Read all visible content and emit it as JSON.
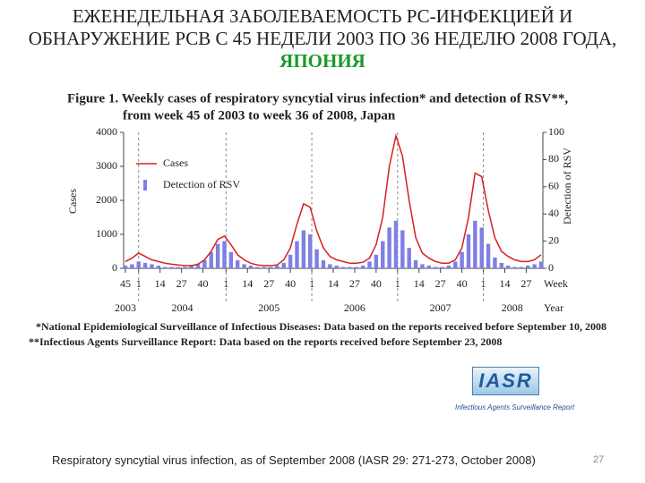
{
  "slide_title": "ЕЖЕНЕДЕЛЬНАЯ ЗАБОЛЕВАЕМОСТЬ РС-ИНФЕКЦИЕЙ И ОБНАРУЖЕНИЕ РСВ С 45 НЕДЕЛИ 2003 ПО 36 НЕДЕЛЮ 2008 ГОДА,",
  "slide_title_highlight": "ЯПОНИЯ",
  "chart_data": {
    "type": "combo",
    "title": [
      "Figure 1. Weekly cases of respiratory syncytial virus infection* and detection of RSV**,",
      "from week 45 of 2003 to week 36 of 2008, Japan"
    ],
    "ylabel": "Cases",
    "y2label": "Detection of RSV",
    "xlabel": "Week",
    "year_label": "Year",
    "years": [
      "2003",
      "2004",
      "2005",
      "2006",
      "2007",
      "2008"
    ],
    "xlim": [
      0,
      252
    ],
    "xticks": [
      {
        "value": 0,
        "label": "45"
      },
      {
        "value": 8,
        "label": "1"
      },
      {
        "value": 21,
        "label": "14"
      },
      {
        "value": 34,
        "label": "27"
      },
      {
        "value": 47,
        "label": "40"
      },
      {
        "value": 61,
        "label": "1"
      },
      {
        "value": 74,
        "label": "14"
      },
      {
        "value": 87,
        "label": "27"
      },
      {
        "value": 100,
        "label": "40"
      },
      {
        "value": 113,
        "label": "1"
      },
      {
        "value": 126,
        "label": "14"
      },
      {
        "value": 139,
        "label": "27"
      },
      {
        "value": 152,
        "label": "40"
      },
      {
        "value": 165,
        "label": "1"
      },
      {
        "value": 178,
        "label": "14"
      },
      {
        "value": 191,
        "label": "27"
      },
      {
        "value": 204,
        "label": "40"
      },
      {
        "value": 217,
        "label": "1"
      },
      {
        "value": 230,
        "label": "14"
      },
      {
        "value": 243,
        "label": "27"
      }
    ],
    "ylim": [
      0,
      4000
    ],
    "yticks": [
      0,
      1000,
      2000,
      3000,
      4000
    ],
    "y2lim": [
      0,
      100
    ],
    "y2ticks": [
      0,
      20,
      40,
      60,
      80,
      100
    ],
    "x": [
      0,
      4,
      8,
      12,
      16,
      20,
      24,
      28,
      32,
      36,
      40,
      44,
      48,
      52,
      56,
      60,
      64,
      68,
      72,
      76,
      80,
      84,
      88,
      92,
      96,
      100,
      104,
      108,
      112,
      116,
      120,
      124,
      128,
      132,
      136,
      140,
      144,
      148,
      152,
      156,
      160,
      164,
      168,
      172,
      176,
      180,
      184,
      188,
      192,
      196,
      200,
      204,
      208,
      212,
      216,
      220,
      224,
      228,
      232,
      236,
      240,
      244,
      248,
      252
    ],
    "series": [
      {
        "name": "Detection of RSV",
        "type": "bar",
        "axis": "y2",
        "color": "#7f7fe6",
        "values": [
          2,
          3,
          5,
          4,
          3,
          2,
          1,
          1,
          1,
          1,
          2,
          3,
          6,
          12,
          18,
          20,
          12,
          6,
          3,
          2,
          1,
          1,
          1,
          2,
          4,
          10,
          20,
          28,
          25,
          14,
          6,
          3,
          2,
          1,
          1,
          1,
          2,
          5,
          10,
          20,
          30,
          35,
          28,
          15,
          6,
          3,
          2,
          1,
          1,
          2,
          5,
          12,
          25,
          35,
          30,
          18,
          8,
          4,
          2,
          1,
          1,
          2,
          3,
          5
        ]
      },
      {
        "name": "Cases",
        "type": "line",
        "color": "#d62020",
        "values": [
          200,
          300,
          450,
          350,
          250,
          200,
          150,
          120,
          100,
          80,
          80,
          120,
          250,
          500,
          850,
          950,
          700,
          400,
          250,
          150,
          100,
          80,
          80,
          100,
          250,
          600,
          1300,
          1900,
          1800,
          1100,
          600,
          350,
          250,
          200,
          150,
          150,
          180,
          300,
          700,
          1500,
          3000,
          3900,
          3300,
          2000,
          900,
          450,
          300,
          200,
          150,
          150,
          250,
          600,
          1500,
          2800,
          2700,
          1700,
          900,
          500,
          350,
          250,
          200,
          200,
          250,
          400
        ]
      }
    ]
  },
  "footnotes": [
    "*National Epidemiological Surveillance of Infectious Diseases: Data based on the reports received before September 10, 2008",
    "**Infectious Agents Surveillance Report: Data based on the reports received before September 23, 2008"
  ],
  "logo": {
    "title": "IASR",
    "subtitle": "Infectious Agents Surveillance Report"
  },
  "caption": "Respiratory syncytial virus infection, as of September 2008 (IASR 29: 271-273, October 2008)",
  "page_number": "27"
}
